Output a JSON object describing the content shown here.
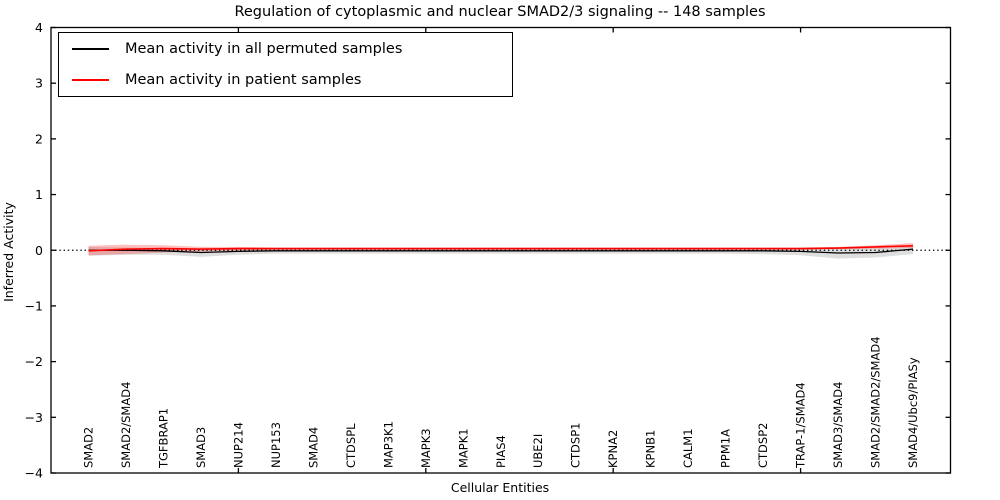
{
  "chart_data": {
    "type": "line",
    "title": "Regulation of cytoplasmic and nuclear SMAD2/3 signaling -- 148 samples",
    "xlabel": "Cellular Entities",
    "ylabel": "Inferred Activity",
    "sample_count": "148",
    "ylim": [
      -4,
      4
    ],
    "xlim": [
      0,
      24
    ],
    "yticks": [
      -4,
      -3,
      -2,
      -1,
      0,
      1,
      2,
      3,
      4
    ],
    "xticks": [
      5,
      10,
      15,
      20
    ],
    "grid": false,
    "legend_position": "upper left",
    "background_color": "#ffffff",
    "axes_color": "#000000",
    "x": [
      1,
      2,
      3,
      4,
      5,
      6,
      7,
      8,
      9,
      10,
      11,
      12,
      13,
      14,
      15,
      16,
      17,
      18,
      19,
      20,
      21,
      22,
      23
    ],
    "categories": [
      "SMAD2",
      "SMAD2/SMAD4",
      "TGFBRAP1",
      "SMAD3",
      "NUP214",
      "NUP153",
      "SMAD4",
      "CTDSPL",
      "MAP3K1",
      "MAPK3",
      "MAPK1",
      "PIAS4",
      "UBE2I",
      "CTDSP1",
      "KPNA2",
      "KPNB1",
      "CALM1",
      "PPM1A",
      "CTDSP2",
      "TRAP-1/SMAD4",
      "SMAD3/SMAD4",
      "SMAD2/SMAD2/SMAD4",
      "SMAD4/Ubc9/PIASy"
    ],
    "series": [
      {
        "name": "Mean activity in all permuted samples",
        "color": "#000000",
        "width": 1.3,
        "values": [
          0.0,
          0.0,
          -0.01,
          -0.04,
          -0.02,
          -0.01,
          -0.01,
          -0.01,
          -0.01,
          -0.01,
          -0.01,
          -0.01,
          -0.01,
          -0.01,
          -0.01,
          -0.01,
          -0.01,
          -0.01,
          -0.01,
          -0.02,
          -0.05,
          -0.04,
          0.02
        ]
      },
      {
        "name": "Mean activity in patient samples",
        "color": "#ff0000",
        "width": 1.6,
        "values": [
          -0.01,
          0.02,
          0.03,
          0.02,
          0.03,
          0.03,
          0.03,
          0.03,
          0.03,
          0.03,
          0.03,
          0.03,
          0.03,
          0.03,
          0.03,
          0.03,
          0.03,
          0.03,
          0.03,
          0.03,
          0.04,
          0.06,
          0.08
        ]
      }
    ],
    "bands": [
      {
        "name": "permuted-std",
        "color": "#999999",
        "opacity": 0.32,
        "upper": [
          0.06,
          0.05,
          0.04,
          0.04,
          0.04,
          0.04,
          0.04,
          0.04,
          0.04,
          0.04,
          0.04,
          0.04,
          0.04,
          0.04,
          0.04,
          0.04,
          0.04,
          0.04,
          0.04,
          0.04,
          0.05,
          0.05,
          0.06
        ],
        "lower": [
          -0.1,
          -0.08,
          -0.08,
          -0.12,
          -0.08,
          -0.06,
          -0.06,
          -0.06,
          -0.06,
          -0.06,
          -0.06,
          -0.06,
          -0.06,
          -0.06,
          -0.06,
          -0.06,
          -0.06,
          -0.06,
          -0.07,
          -0.09,
          -0.15,
          -0.13,
          -0.07
        ]
      },
      {
        "name": "patient-std",
        "color": "#ff0000",
        "opacity": 0.25,
        "upper": [
          0.08,
          0.1,
          0.09,
          0.06,
          0.06,
          0.05,
          0.05,
          0.05,
          0.05,
          0.05,
          0.05,
          0.05,
          0.05,
          0.05,
          0.05,
          0.05,
          0.05,
          0.05,
          0.05,
          0.05,
          0.06,
          0.09,
          0.13
        ],
        "lower": [
          -0.09,
          -0.07,
          -0.04,
          -0.02,
          -0.01,
          0.01,
          0.01,
          0.01,
          0.01,
          0.01,
          0.01,
          0.01,
          0.01,
          0.01,
          0.01,
          0.01,
          0.01,
          0.01,
          0.01,
          0.01,
          0.02,
          0.03,
          0.04
        ]
      }
    ],
    "zero_line": {
      "y": 0,
      "style": "dotted",
      "color": "#000000"
    }
  }
}
